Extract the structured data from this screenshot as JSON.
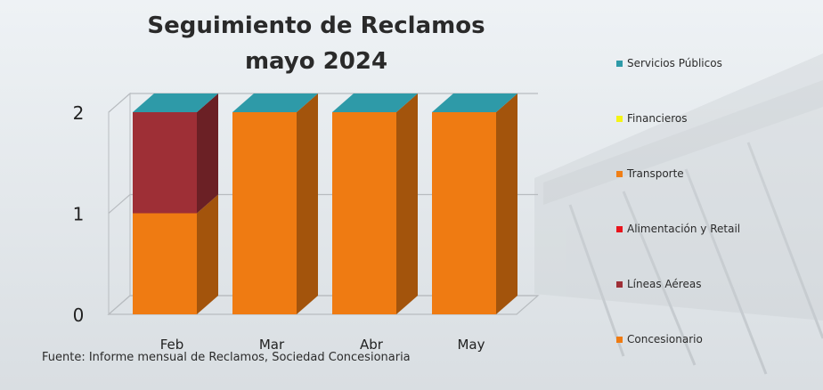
{
  "chart_data": {
    "type": "bar",
    "stacked": true,
    "title": "Seguimiento de Reclamos",
    "subtitle": "mayo 2024",
    "categories": [
      "Feb",
      "Mar",
      "Abr",
      "May"
    ],
    "ylim": [
      0,
      2
    ],
    "yticks": [
      "0",
      "1",
      "2"
    ],
    "grid": true,
    "legend_position": "right",
    "series": [
      {
        "name": "Concesionario",
        "color": "#ef7b12",
        "values": [
          1,
          2,
          2,
          2
        ]
      },
      {
        "name": "Líneas Aéreas",
        "color": "#9e2f36",
        "values": [
          1,
          0,
          0,
          0
        ]
      },
      {
        "name": "Alimentación y Retail",
        "color": "#e8141c",
        "values": [
          0,
          0,
          0,
          0
        ]
      },
      {
        "name": "Transporte",
        "color": "#f07f16",
        "values": [
          0,
          0,
          0,
          0
        ]
      },
      {
        "name": "Financieros",
        "color": "#f4f414",
        "values": [
          0,
          0,
          0,
          0
        ]
      },
      {
        "name": "Servicios Públicos",
        "color": "#2e9aa8",
        "values": [
          0,
          0,
          0,
          0
        ]
      }
    ],
    "legend": [
      "Servicios Públicos",
      "Financieros",
      "Transporte",
      "Alimentación y Retail",
      "Líneas Aéreas",
      "Concesionario"
    ],
    "source": "Fuente: Informe mensual de Reclamos, Sociedad Concesionaria"
  }
}
